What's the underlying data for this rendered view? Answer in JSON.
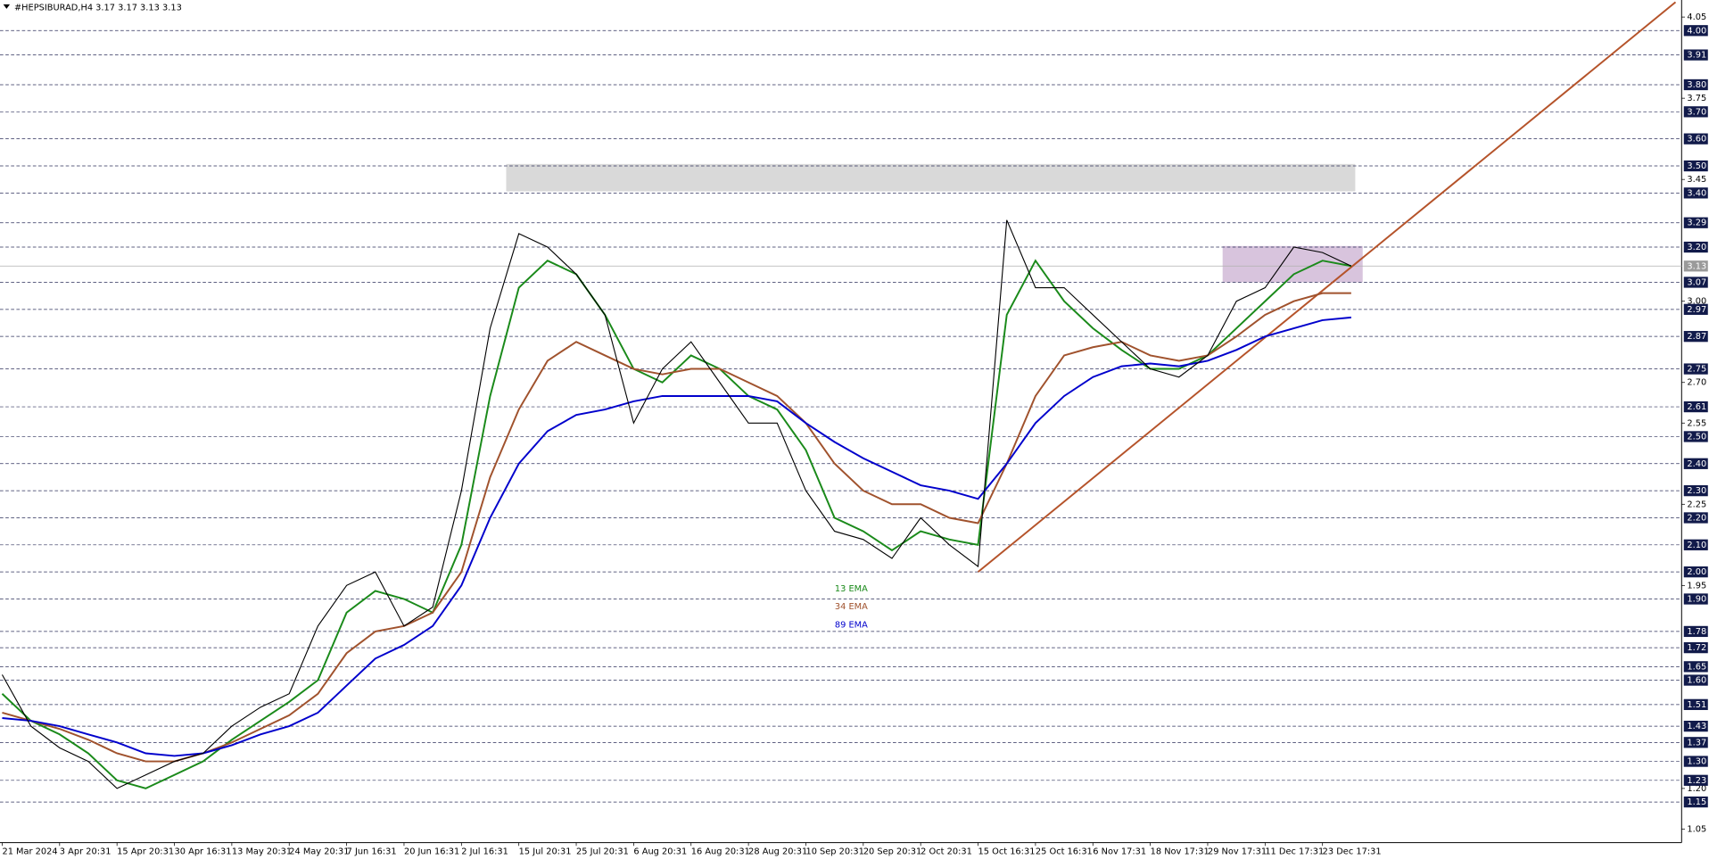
{
  "chart_data": {
    "type": "line",
    "title": "#HEPSIBURAD,H4  3.17 3.17 3.13 3.13",
    "categories": [
      "21 Mar 2024",
      null,
      "3 Apr 20:31",
      null,
      "15 Apr 20:31",
      null,
      "30 Apr 16:31",
      null,
      "13 May 20:31",
      null,
      "24 May 20:31",
      null,
      "7 Jun 16:31",
      null,
      "20 Jun 16:31",
      null,
      "2 Jul 16:31",
      null,
      "15 Jul 20:31",
      null,
      "25 Jul 20:31",
      null,
      "6 Aug 20:31",
      null,
      "16 Aug 20:31",
      null,
      "28 Aug 20:31",
      null,
      "10 Sep 20:31",
      null,
      "20 Sep 20:31",
      null,
      "2 Oct 20:31",
      null,
      "15 Oct 16:31",
      null,
      "25 Oct 16:31",
      null,
      "6 Nov 17:31",
      null,
      "18 Nov 17:31",
      null,
      "29 Nov 17:31",
      null,
      "11 Dec 17:31",
      null,
      "23 Dec 17:31",
      null
    ],
    "values": [
      1.62,
      1.43,
      1.35,
      1.3,
      1.2,
      1.25,
      1.3,
      1.33,
      1.43,
      1.5,
      1.55,
      1.8,
      1.95,
      2.0,
      1.8,
      1.87,
      2.3,
      2.9,
      3.25,
      3.2,
      3.1,
      2.95,
      2.55,
      2.75,
      2.85,
      2.7,
      2.55,
      2.55,
      2.3,
      2.15,
      2.12,
      2.05,
      2.2,
      2.1,
      2.02,
      3.3,
      3.05,
      3.05,
      2.95,
      2.85,
      2.75,
      2.72,
      2.8,
      3.0,
      3.05,
      3.2,
      3.18,
      3.13
    ],
    "color": "#000000",
    "series": [
      {
        "name": "13 EMA",
        "color": "#1a8a1a",
        "values": [
          1.55,
          1.45,
          1.4,
          1.33,
          1.23,
          1.2,
          1.25,
          1.3,
          1.38,
          1.45,
          1.52,
          1.6,
          1.85,
          1.93,
          1.9,
          1.85,
          2.1,
          2.65,
          3.05,
          3.15,
          3.1,
          2.95,
          2.75,
          2.7,
          2.8,
          2.75,
          2.65,
          2.6,
          2.45,
          2.2,
          2.15,
          2.08,
          2.15,
          2.12,
          2.1,
          2.95,
          3.15,
          3.0,
          2.9,
          2.82,
          2.75,
          2.75,
          2.8,
          2.9,
          3.0,
          3.1,
          3.15,
          3.13
        ]
      },
      {
        "name": "34 EMA",
        "color": "#a0522d",
        "values": [
          1.48,
          1.45,
          1.42,
          1.38,
          1.33,
          1.3,
          1.3,
          1.33,
          1.37,
          1.42,
          1.47,
          1.55,
          1.7,
          1.78,
          1.8,
          1.85,
          2.0,
          2.35,
          2.6,
          2.78,
          2.85,
          2.8,
          2.75,
          2.73,
          2.75,
          2.75,
          2.7,
          2.65,
          2.55,
          2.4,
          2.3,
          2.25,
          2.25,
          2.2,
          2.18,
          2.4,
          2.65,
          2.8,
          2.83,
          2.85,
          2.8,
          2.78,
          2.8,
          2.87,
          2.95,
          3.0,
          3.03,
          3.03
        ]
      },
      {
        "name": "89 EMA",
        "color": "#0000cc",
        "values": [
          1.46,
          1.45,
          1.43,
          1.4,
          1.37,
          1.33,
          1.32,
          1.33,
          1.36,
          1.4,
          1.43,
          1.48,
          1.58,
          1.68,
          1.73,
          1.8,
          1.95,
          2.2,
          2.4,
          2.52,
          2.58,
          2.6,
          2.63,
          2.65,
          2.65,
          2.65,
          2.65,
          2.63,
          2.55,
          2.48,
          2.42,
          2.37,
          2.32,
          2.3,
          2.27,
          2.4,
          2.55,
          2.65,
          2.72,
          2.76,
          2.77,
          2.76,
          2.78,
          2.82,
          2.87,
          2.9,
          2.93,
          2.94
        ]
      }
    ],
    "ylim": [
      1.0,
      4.113
    ],
    "yticks": [
      1.05,
      {
        "value": 1.2,
        "label": "1.20"
      },
      1.95,
      2.25,
      2.55,
      {
        "value": 2.7,
        "label": "2.70"
      },
      {
        "value": 3.0,
        "label": "3.00"
      },
      3.45,
      3.75,
      4.05
    ],
    "levels": [
      1.15,
      1.23,
      {
        "value": 1.3,
        "label": "1.30"
      },
      1.37,
      1.43,
      1.51,
      {
        "value": 1.6,
        "label": "1.60"
      },
      1.65,
      1.72,
      1.78,
      {
        "value": 1.9,
        "label": "1.90"
      },
      {
        "value": 2.0,
        "label": "2.00"
      },
      {
        "value": 2.1,
        "label": "2.10"
      },
      {
        "value": 2.2,
        "label": "2.20"
      },
      {
        "value": 2.3,
        "label": "2.30"
      },
      {
        "value": 2.4,
        "label": "2.40"
      },
      {
        "value": 2.5,
        "label": "2.50"
      },
      2.61,
      2.75,
      2.87,
      2.97,
      3.07,
      {
        "value": 3.2,
        "label": "3.20"
      },
      3.29,
      {
        "value": 3.4,
        "label": "3.40"
      },
      {
        "value": 3.5,
        "label": "3.50"
      },
      {
        "value": 3.6,
        "label": "3.60"
      },
      {
        "value": 3.7,
        "label": "3.70"
      },
      {
        "value": 3.8,
        "label": "3.80"
      },
      3.91,
      {
        "value": 4.0,
        "label": "4.00"
      }
    ],
    "last_price": 3.13,
    "zones": [
      {
        "x": [
          17.56,
          47.14
        ],
        "ylim": [
          3.406,
          3.507
        ],
        "color": "#d9d9d9"
      },
      {
        "x": [
          42.52,
          47.4
        ],
        "ylim": [
          3.07,
          3.204
        ],
        "color": "#d8c4dd"
      }
    ],
    "trendline": {
      "x": [
        34.0,
        58.3
      ],
      "y": [
        2.0,
        4.105
      ],
      "color": "#b5532a"
    }
  }
}
